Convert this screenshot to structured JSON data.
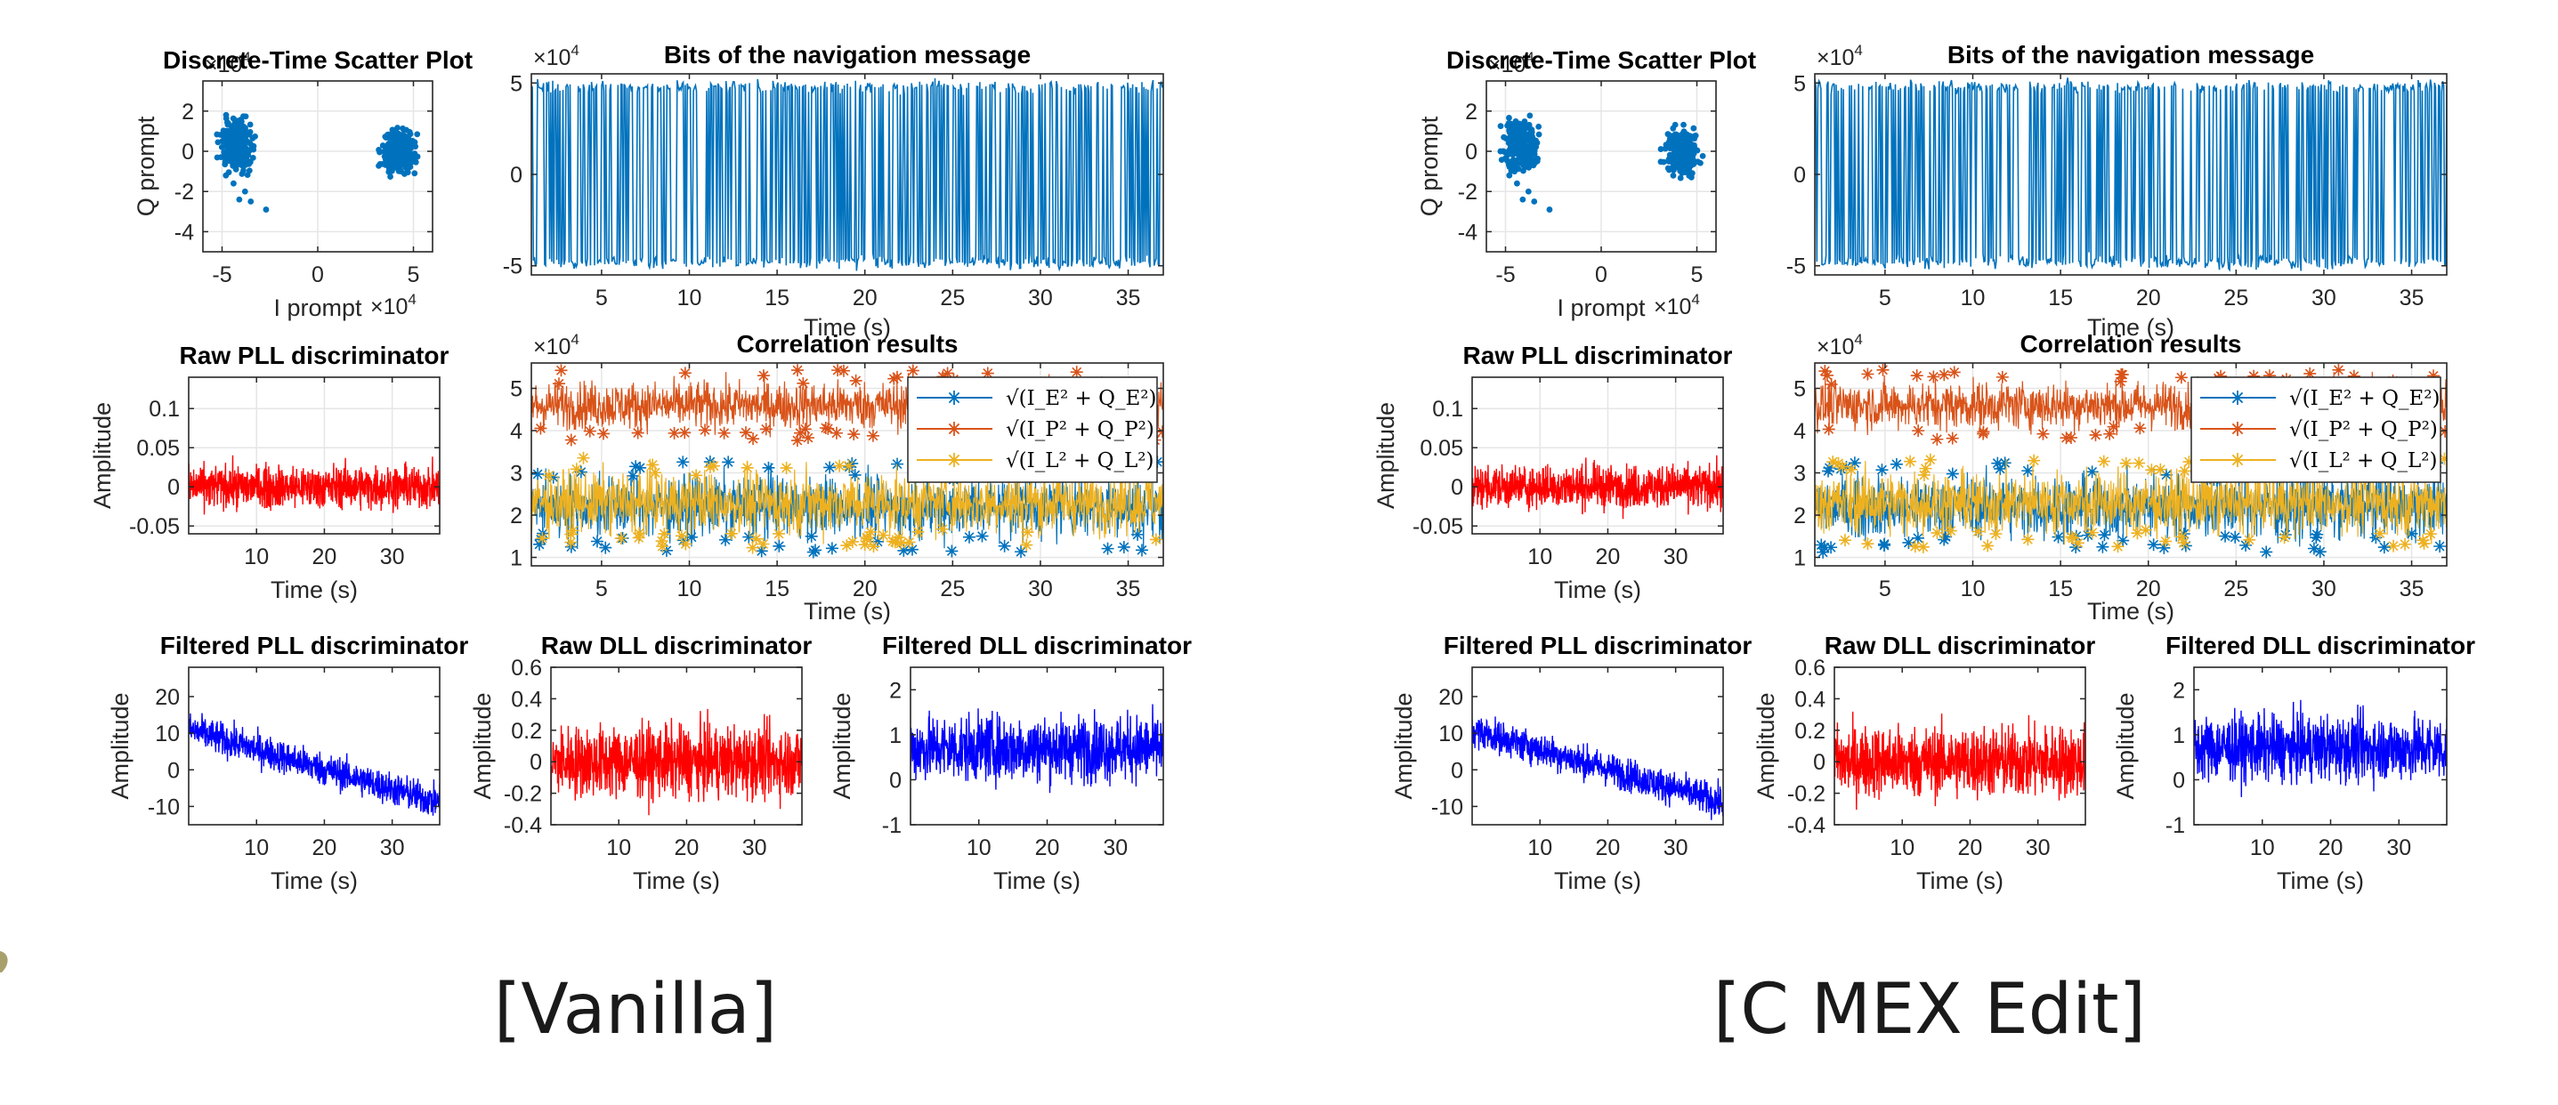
{
  "captions": {
    "left": "[Vanilla]",
    "right": "[C MEX Edit]"
  },
  "colors": {
    "blue_std": "#0072BD",
    "orange": "#D95319",
    "yellow": "#EDB120",
    "red": "#FF0000",
    "blue_pure": "#0000FF",
    "axis": "#262626",
    "grid": "#E6E6E6"
  },
  "panels": [
    {
      "id": "vanilla",
      "caption": "[Vanilla]"
    },
    {
      "id": "cmex",
      "caption": "[C MEX Edit]"
    }
  ],
  "chart_data": [
    {
      "panel": "vanilla",
      "key": "scatter",
      "type": "scatter",
      "title": "Discrete-Time Scatter Plot",
      "xlabel": "I prompt",
      "ylabel": "Q prompt",
      "exponent_x": "×10^4",
      "exponent_y": "×10^4",
      "xlim": [
        -6,
        6
      ],
      "ylim": [
        -5,
        3.5
      ],
      "xticks": [
        "-5",
        "0",
        "5"
      ],
      "yticks": [
        "2",
        "0",
        "-2",
        "-4"
      ],
      "clusters": [
        {
          "cx": -4.2,
          "cy": 0.3,
          "rx": 0.9,
          "ry": 1.3
        },
        {
          "cx": 4.2,
          "cy": 0.0,
          "rx": 0.9,
          "ry": 1.2
        }
      ],
      "outliers": [
        [
          -4.8,
          -1.2
        ],
        [
          -4.4,
          -1.6
        ],
        [
          -3.8,
          -2.0
        ],
        [
          -3.5,
          -2.5
        ],
        [
          -2.7,
          -2.9
        ],
        [
          -4.1,
          -2.4
        ]
      ],
      "color": "#0072BD"
    },
    {
      "panel": "vanilla",
      "key": "bits",
      "type": "line",
      "title": "Bits of the navigation message",
      "xlabel": "Time (s)",
      "ylabel": "",
      "exponent_y": "×10^4",
      "xlim": [
        1,
        37
      ],
      "ylim": [
        -5.5,
        5.5
      ],
      "xticks": [
        "5",
        "10",
        "15",
        "20",
        "25",
        "30",
        "35"
      ],
      "yticks": [
        "5",
        "0",
        "-5"
      ],
      "levels": [
        -4.8,
        4.8
      ],
      "color": "#0072BD"
    },
    {
      "panel": "vanilla",
      "key": "rawpll",
      "type": "line",
      "title": "Raw PLL discriminator",
      "xlabel": "Time (s)",
      "ylabel": "Amplitude",
      "xlim": [
        0,
        37
      ],
      "ylim": [
        -0.06,
        0.14
      ],
      "xticks": [
        "10",
        "20",
        "30"
      ],
      "yticks": [
        "0.1",
        "0.05",
        "0",
        "-0.05"
      ],
      "mean": 0.0,
      "spread": 0.03,
      "color": "#FF0000"
    },
    {
      "panel": "vanilla",
      "key": "corr",
      "type": "line",
      "title": "Correlation results",
      "xlabel": "Time (s)",
      "ylabel": "",
      "exponent_y": "×10^4",
      "xlim": [
        1,
        37
      ],
      "ylim": [
        0.8,
        5.6
      ],
      "xticks": [
        "5",
        "10",
        "15",
        "20",
        "25",
        "30",
        "35"
      ],
      "yticks": [
        "5",
        "4",
        "3",
        "2",
        "1"
      ],
      "series": [
        {
          "name": "√(I_E² + Q_E²)",
          "mean": 2.2,
          "spread": 0.9,
          "color": "#0072BD"
        },
        {
          "name": "√(I_P² + Q_P²)",
          "mean": 4.6,
          "spread": 0.7,
          "color": "#D95319"
        },
        {
          "name": "√(I_L² + Q_L²)",
          "mean": 2.3,
          "spread": 0.9,
          "color": "#EDB120"
        }
      ]
    },
    {
      "panel": "vanilla",
      "key": "filtpll",
      "type": "line",
      "title": "Filtered PLL discriminator",
      "xlabel": "Time (s)",
      "ylabel": "Amplitude",
      "xlim": [
        0,
        37
      ],
      "ylim": [
        -15,
        28
      ],
      "xticks": [
        "10",
        "20",
        "30"
      ],
      "yticks": [
        "20",
        "10",
        "0",
        "-10"
      ],
      "start": 11,
      "end": -9,
      "spread": 5,
      "color": "#0000FF"
    },
    {
      "panel": "vanilla",
      "key": "rawdll",
      "type": "line",
      "title": "Raw DLL discriminator",
      "xlabel": "Time (s)",
      "ylabel": "Amplitude",
      "xlim": [
        0,
        37
      ],
      "ylim": [
        -0.4,
        0.6
      ],
      "xticks": [
        "10",
        "20",
        "30"
      ],
      "yticks": [
        "0.6",
        "0.4",
        "0.2",
        "0",
        "-0.2",
        "-0.4"
      ],
      "mean": 0.0,
      "spread": 0.25,
      "color": "#FF0000"
    },
    {
      "panel": "vanilla",
      "key": "filtdll",
      "type": "line",
      "title": "Filtered DLL discriminator",
      "xlabel": "Time (s)",
      "ylabel": "Amplitude",
      "xlim": [
        0,
        37
      ],
      "ylim": [
        -1,
        2.5
      ],
      "xticks": [
        "10",
        "20",
        "30"
      ],
      "yticks": [
        "2",
        "1",
        "0",
        "-1"
      ],
      "mean": 0.7,
      "spread": 0.8,
      "color": "#0000FF"
    },
    {
      "panel": "cmex",
      "key": "scatter",
      "type": "scatter",
      "title": "Discrete-Time Scatter Plot",
      "xlabel": "I prompt",
      "ylabel": "Q prompt",
      "exponent_x": "×10^4",
      "exponent_y": "×10^4",
      "xlim": [
        -6,
        6
      ],
      "ylim": [
        -5,
        3.5
      ],
      "xticks": [
        "-5",
        "0",
        "5"
      ],
      "yticks": [
        "2",
        "0",
        "-2",
        "-4"
      ],
      "clusters": [
        {
          "cx": -4.2,
          "cy": 0.3,
          "rx": 0.9,
          "ry": 1.3
        },
        {
          "cx": 4.2,
          "cy": 0.0,
          "rx": 0.9,
          "ry": 1.2
        }
      ],
      "outliers": [
        [
          -4.8,
          -1.2
        ],
        [
          -4.4,
          -1.6
        ],
        [
          -3.8,
          -2.0
        ],
        [
          -3.5,
          -2.5
        ],
        [
          -2.7,
          -2.9
        ],
        [
          -4.1,
          -2.4
        ]
      ],
      "color": "#0072BD"
    },
    {
      "panel": "cmex",
      "key": "bits",
      "type": "line",
      "title": "Bits of the navigation message",
      "xlabel": "Time (s)",
      "ylabel": "",
      "exponent_y": "×10^4",
      "xlim": [
        1,
        37
      ],
      "ylim": [
        -5.5,
        5.5
      ],
      "xticks": [
        "5",
        "10",
        "15",
        "20",
        "25",
        "30",
        "35"
      ],
      "yticks": [
        "5",
        "0",
        "-5"
      ],
      "levels": [
        -4.8,
        4.8
      ],
      "color": "#0072BD"
    },
    {
      "panel": "cmex",
      "key": "rawpll",
      "type": "line",
      "title": "Raw PLL discriminator",
      "xlabel": "Time (s)",
      "ylabel": "Amplitude",
      "xlim": [
        0,
        37
      ],
      "ylim": [
        -0.06,
        0.14
      ],
      "xticks": [
        "10",
        "20",
        "30"
      ],
      "yticks": [
        "0.1",
        "0.05",
        "0",
        "-0.05"
      ],
      "mean": 0.0,
      "spread": 0.03,
      "color": "#FF0000"
    },
    {
      "panel": "cmex",
      "key": "corr",
      "type": "line",
      "title": "Correlation results",
      "xlabel": "Time (s)",
      "ylabel": "",
      "exponent_y": "×10^4",
      "xlim": [
        1,
        37
      ],
      "ylim": [
        0.8,
        5.6
      ],
      "xticks": [
        "5",
        "10",
        "15",
        "20",
        "25",
        "30",
        "35"
      ],
      "yticks": [
        "5",
        "4",
        "3",
        "2",
        "1"
      ],
      "series": [
        {
          "name": "√(I_E² + Q_E²)",
          "mean": 2.2,
          "spread": 0.9,
          "color": "#0072BD"
        },
        {
          "name": "√(I_P² + Q_P²)",
          "mean": 4.6,
          "spread": 0.7,
          "color": "#D95319"
        },
        {
          "name": "√(I_L² + Q_L²)",
          "mean": 2.3,
          "spread": 0.9,
          "color": "#EDB120"
        }
      ]
    },
    {
      "panel": "cmex",
      "key": "filtpll",
      "type": "line",
      "title": "Filtered PLL discriminator",
      "xlabel": "Time (s)",
      "ylabel": "Amplitude",
      "xlim": [
        0,
        37
      ],
      "ylim": [
        -15,
        28
      ],
      "xticks": [
        "10",
        "20",
        "30"
      ],
      "yticks": [
        "20",
        "10",
        "0",
        "-10"
      ],
      "start": 11,
      "end": -9,
      "spread": 5,
      "color": "#0000FF"
    },
    {
      "panel": "cmex",
      "key": "rawdll",
      "type": "line",
      "title": "Raw DLL discriminator",
      "xlabel": "Time (s)",
      "ylabel": "Amplitude",
      "xlim": [
        0,
        37
      ],
      "ylim": [
        -0.4,
        0.6
      ],
      "xticks": [
        "10",
        "20",
        "30"
      ],
      "yticks": [
        "0.6",
        "0.4",
        "0.2",
        "0",
        "-0.2",
        "-0.4"
      ],
      "mean": 0.0,
      "spread": 0.25,
      "color": "#FF0000"
    },
    {
      "panel": "cmex",
      "key": "filtdll",
      "type": "line",
      "title": "Filtered DLL discriminator",
      "xlabel": "Time (s)",
      "ylabel": "Amplitude",
      "xlim": [
        0,
        37
      ],
      "ylim": [
        -1,
        2.5
      ],
      "xticks": [
        "10",
        "20",
        "30"
      ],
      "yticks": [
        "2",
        "1",
        "0",
        "-1"
      ],
      "mean": 0.7,
      "spread": 0.8,
      "color": "#0000FF"
    }
  ]
}
